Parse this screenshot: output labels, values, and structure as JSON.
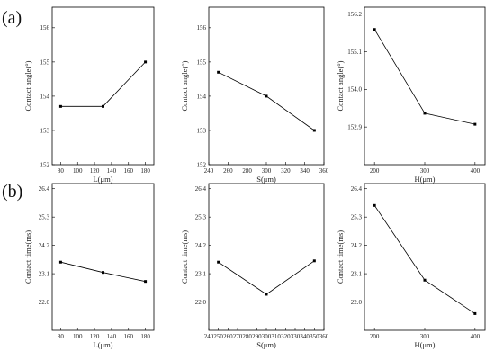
{
  "row_labels": [
    "(a)",
    "(b)"
  ],
  "chart_data": [
    {
      "type": "line",
      "panel": "a",
      "title": "",
      "xlabel": "L(μm)",
      "ylabel": "Contact angle(°)",
      "xlim": [
        70,
        190
      ],
      "ylim": [
        152,
        156.6
      ],
      "xticks": [
        80,
        100,
        120,
        140,
        160,
        180
      ],
      "yticks": [
        152,
        153,
        154,
        155,
        156
      ],
      "series": [
        {
          "x": [
            80,
            130,
            180
          ],
          "values": [
            153.7,
            153.7,
            155.0
          ]
        }
      ]
    },
    {
      "type": "line",
      "panel": "a",
      "title": "",
      "xlabel": "S(μm)",
      "ylabel": "Contact angle(°)",
      "xlim": [
        240,
        360
      ],
      "ylim": [
        152,
        156.6
      ],
      "xticks": [
        240,
        260,
        280,
        300,
        320,
        340,
        360
      ],
      "yticks": [
        152,
        153,
        154,
        155,
        156
      ],
      "series": [
        {
          "x": [
            250,
            300,
            350
          ],
          "values": [
            154.7,
            154.0,
            153.0
          ]
        }
      ]
    },
    {
      "type": "line",
      "panel": "a",
      "title": "",
      "xlabel": "H(μm)",
      "ylabel": "Contact angle(°)",
      "xlim": [
        180,
        420
      ],
      "ylim": [
        151.8,
        156.4
      ],
      "xticks": [
        200,
        300,
        400
      ],
      "yticks": [
        152.9,
        154.0,
        155.1,
        156.2
      ],
      "ytick_labels": [
        "152.9",
        "154.0",
        "155.1",
        "156.2"
      ],
      "series": [
        {
          "x": [
            200,
            300,
            400
          ],
          "values": [
            155.75,
            153.3,
            152.98
          ]
        }
      ]
    },
    {
      "type": "line",
      "panel": "b",
      "title": "",
      "xlabel": "L(μm)",
      "ylabel": "Contact time(ms)",
      "xlim": [
        70,
        190
      ],
      "ylim": [
        20.9,
        26.6
      ],
      "xticks": [
        80,
        100,
        120,
        140,
        160,
        180
      ],
      "yticks": [
        22.0,
        23.1,
        24.2,
        25.3,
        26.4
      ],
      "ytick_labels": [
        "22.0",
        "23.1",
        "24.2",
        "25.3",
        "26.4"
      ],
      "series": [
        {
          "x": [
            80,
            130,
            180
          ],
          "values": [
            23.55,
            23.15,
            22.8
          ]
        }
      ]
    },
    {
      "type": "line",
      "panel": "b",
      "title": "",
      "xlabel": "S(μm)",
      "ylabel": "Contact time(ms)",
      "xlim": [
        240,
        360
      ],
      "ylim": [
        20.9,
        26.6
      ],
      "xticks": [
        240,
        250,
        260,
        270,
        280,
        290,
        300,
        310,
        320,
        330,
        340,
        350,
        360
      ],
      "xtick_labels": [
        "240",
        "250",
        "260",
        "270",
        "280",
        "290",
        "300",
        "310",
        "320",
        "330",
        "340",
        "350",
        "360"
      ],
      "yticks": [
        22.0,
        23.1,
        24.2,
        25.3,
        26.4
      ],
      "ytick_labels": [
        "22.0",
        "23.1",
        "24.2",
        "25.3",
        "26.4"
      ],
      "series": [
        {
          "x": [
            250,
            300,
            350
          ],
          "values": [
            23.55,
            22.3,
            23.6
          ]
        }
      ]
    },
    {
      "type": "line",
      "panel": "b",
      "title": "",
      "xlabel": "H(μm)",
      "ylabel": "Contact time(ms)",
      "xlim": [
        180,
        420
      ],
      "ylim": [
        20.9,
        26.6
      ],
      "xticks": [
        200,
        300,
        400
      ],
      "yticks": [
        22.0,
        23.1,
        24.2,
        25.3,
        26.4
      ],
      "ytick_labels": [
        "22.0",
        "23.1",
        "24.2",
        "25.3",
        "26.4"
      ],
      "series": [
        {
          "x": [
            200,
            300,
            400
          ],
          "values": [
            25.75,
            22.85,
            21.55
          ]
        }
      ]
    }
  ]
}
